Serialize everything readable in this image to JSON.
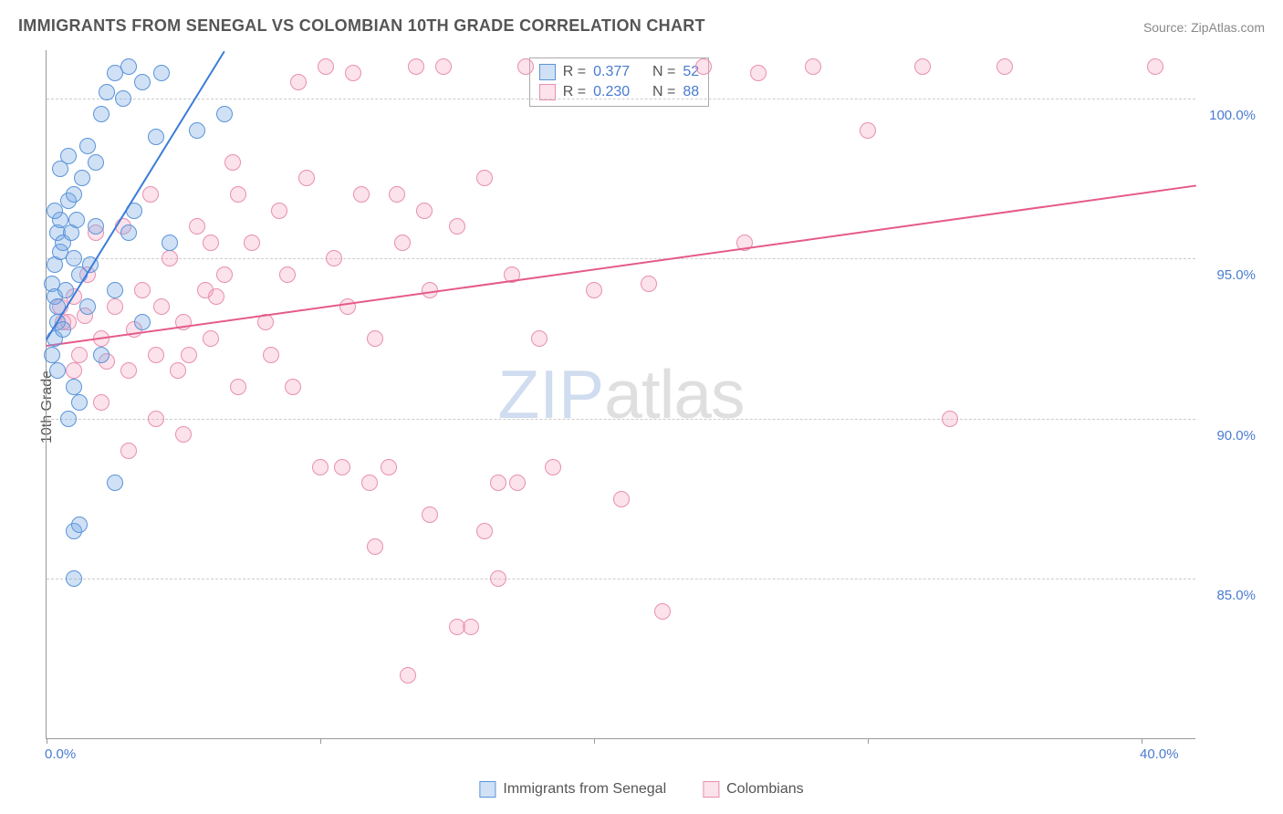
{
  "title": "IMMIGRANTS FROM SENEGAL VS COLOMBIAN 10TH GRADE CORRELATION CHART",
  "source_label": "Source: ",
  "source_name": "ZipAtlas.com",
  "y_axis_title": "10th Grade",
  "watermark_prefix": "ZIP",
  "watermark_suffix": "atlas",
  "plot": {
    "xlim": [
      0,
      42
    ],
    "ylim": [
      80,
      101.5
    ],
    "x_ticks": [
      0,
      10,
      20,
      30,
      40
    ],
    "x_tick_labels": [
      "0.0%",
      "",
      "",
      "",
      "40.0%"
    ],
    "y_gridlines": [
      85,
      90,
      95,
      100
    ],
    "y_tick_labels": [
      "85.0%",
      "90.0%",
      "95.0%",
      "100.0%"
    ],
    "grid_color": "#cccccc",
    "border_color": "#999999",
    "background_color": "#ffffff"
  },
  "series": {
    "senegal": {
      "label": "Immigrants from Senegal",
      "fill_color": "rgba(120, 170, 230, 0.35)",
      "stroke_color": "#5a94d8",
      "line_color": "#3b7dd8",
      "marker_radius": 9,
      "R_label": "R = ",
      "R_value": "0.377",
      "N_label": "N = ",
      "N_value": "52",
      "trend": {
        "x1": 0,
        "y1": 92.5,
        "x2": 6.5,
        "y2": 101.5
      },
      "points": [
        [
          0.2,
          94.2
        ],
        [
          0.3,
          93.8
        ],
        [
          0.4,
          93.0
        ],
        [
          0.3,
          94.8
        ],
        [
          0.5,
          95.2
        ],
        [
          0.4,
          95.8
        ],
        [
          0.6,
          95.5
        ],
        [
          0.5,
          96.2
        ],
        [
          0.8,
          96.8
        ],
        [
          0.3,
          92.5
        ],
        [
          0.2,
          92.0
        ],
        [
          0.4,
          91.5
        ],
        [
          0.6,
          92.8
        ],
        [
          1.0,
          95.0
        ],
        [
          1.2,
          94.5
        ],
        [
          1.5,
          93.5
        ],
        [
          1.0,
          97.0
        ],
        [
          1.3,
          97.5
        ],
        [
          1.8,
          96.0
        ],
        [
          1.5,
          98.5
        ],
        [
          2.0,
          99.5
        ],
        [
          2.2,
          100.2
        ],
        [
          2.5,
          100.8
        ],
        [
          3.0,
          101.0
        ],
        [
          3.5,
          100.5
        ],
        [
          4.2,
          100.8
        ],
        [
          1.0,
          91.0
        ],
        [
          1.2,
          90.5
        ],
        [
          0.8,
          90.0
        ],
        [
          2.0,
          92.0
        ],
        [
          2.5,
          94.0
        ],
        [
          3.0,
          95.8
        ],
        [
          3.5,
          93.0
        ],
        [
          4.0,
          98.8
        ],
        [
          4.5,
          95.5
        ],
        [
          5.5,
          99.0
        ],
        [
          6.5,
          99.5
        ],
        [
          2.5,
          88.0
        ],
        [
          1.0,
          86.5
        ],
        [
          1.2,
          86.7
        ],
        [
          1.0,
          85.0
        ],
        [
          0.5,
          97.8
        ],
        [
          0.8,
          98.2
        ],
        [
          2.8,
          100.0
        ],
        [
          0.3,
          96.5
        ],
        [
          0.7,
          94.0
        ],
        [
          1.8,
          98.0
        ],
        [
          3.2,
          96.5
        ],
        [
          0.4,
          93.5
        ],
        [
          0.9,
          95.8
        ],
        [
          1.1,
          96.2
        ],
        [
          1.6,
          94.8
        ]
      ]
    },
    "colombians": {
      "label": "Colombians",
      "fill_color": "rgba(245, 160, 190, 0.3)",
      "stroke_color": "#e88fb0",
      "line_color": "#e55a8a",
      "marker_radius": 9,
      "R_label": "R = ",
      "R_value": "0.230",
      "N_label": "N = ",
      "N_value": "88",
      "trend": {
        "x1": 0,
        "y1": 92.3,
        "x2": 42,
        "y2": 97.3
      },
      "points": [
        [
          0.5,
          93.5
        ],
        [
          0.8,
          93.0
        ],
        [
          1.0,
          93.8
        ],
        [
          1.2,
          92.0
        ],
        [
          1.5,
          94.5
        ],
        [
          2.0,
          92.5
        ],
        [
          2.5,
          93.5
        ],
        [
          3.0,
          91.5
        ],
        [
          3.5,
          94.0
        ],
        [
          4.0,
          92.0
        ],
        [
          4.5,
          95.0
        ],
        [
          5.0,
          93.0
        ],
        [
          5.5,
          96.0
        ],
        [
          6.0,
          92.5
        ],
        [
          6.5,
          94.5
        ],
        [
          7.0,
          97.0
        ],
        [
          7.5,
          95.5
        ],
        [
          8.0,
          93.0
        ],
        [
          8.5,
          96.5
        ],
        [
          9.0,
          91.0
        ],
        [
          9.5,
          97.5
        ],
        [
          10.0,
          88.5
        ],
        [
          10.5,
          95.0
        ],
        [
          11.0,
          93.5
        ],
        [
          11.5,
          97.0
        ],
        [
          12.0,
          92.5
        ],
        [
          12.5,
          88.5
        ],
        [
          13.0,
          95.5
        ],
        [
          13.5,
          101.0
        ],
        [
          14.0,
          94.0
        ],
        [
          14.5,
          101.0
        ],
        [
          15.0,
          96.0
        ],
        [
          15.5,
          83.5
        ],
        [
          16.0,
          97.5
        ],
        [
          16.5,
          88.0
        ],
        [
          17.0,
          94.5
        ],
        [
          17.5,
          101.0
        ],
        [
          18.0,
          92.5
        ],
        [
          2.0,
          90.5
        ],
        [
          3.0,
          89.0
        ],
        [
          4.0,
          90.0
        ],
        [
          5.0,
          89.5
        ],
        [
          6.0,
          95.5
        ],
        [
          7.0,
          91.0
        ],
        [
          12.0,
          86.0
        ],
        [
          14.0,
          87.0
        ],
        [
          15.0,
          83.5
        ],
        [
          16.0,
          86.5
        ],
        [
          16.5,
          85.0
        ],
        [
          18.5,
          88.5
        ],
        [
          20.0,
          94.0
        ],
        [
          22.0,
          94.2
        ],
        [
          21.0,
          87.5
        ],
        [
          22.5,
          84.0
        ],
        [
          24.0,
          101.0
        ],
        [
          25.5,
          95.5
        ],
        [
          26.0,
          100.8
        ],
        [
          28.0,
          101.0
        ],
        [
          30.0,
          99.0
        ],
        [
          32.0,
          101.0
        ],
        [
          33.0,
          90.0
        ],
        [
          35.0,
          101.0
        ],
        [
          40.5,
          101.0
        ],
        [
          1.0,
          91.5
        ],
        [
          1.8,
          95.8
        ],
        [
          2.8,
          96.0
        ],
        [
          3.8,
          97.0
        ],
        [
          4.8,
          91.5
        ],
        [
          5.8,
          94.0
        ],
        [
          6.8,
          98.0
        ],
        [
          8.2,
          92.0
        ],
        [
          9.2,
          100.5
        ],
        [
          10.2,
          101.0
        ],
        [
          11.2,
          100.8
        ],
        [
          12.8,
          97.0
        ],
        [
          13.8,
          96.5
        ],
        [
          0.6,
          93.0
        ],
        [
          1.4,
          93.2
        ],
        [
          2.2,
          91.8
        ],
        [
          3.2,
          92.8
        ],
        [
          4.2,
          93.5
        ],
        [
          5.2,
          92.0
        ],
        [
          6.2,
          93.8
        ],
        [
          8.8,
          94.5
        ],
        [
          10.8,
          88.5
        ],
        [
          11.8,
          88.0
        ],
        [
          13.2,
          82.0
        ],
        [
          17.2,
          88.0
        ]
      ]
    }
  },
  "bottom_legend": [
    {
      "key": "senegal"
    },
    {
      "key": "colombians"
    }
  ],
  "colors": {
    "title_text": "#555555",
    "source_text": "#888888",
    "tick_label_text": "#4a7bd0",
    "axis_title_text": "#555555"
  }
}
